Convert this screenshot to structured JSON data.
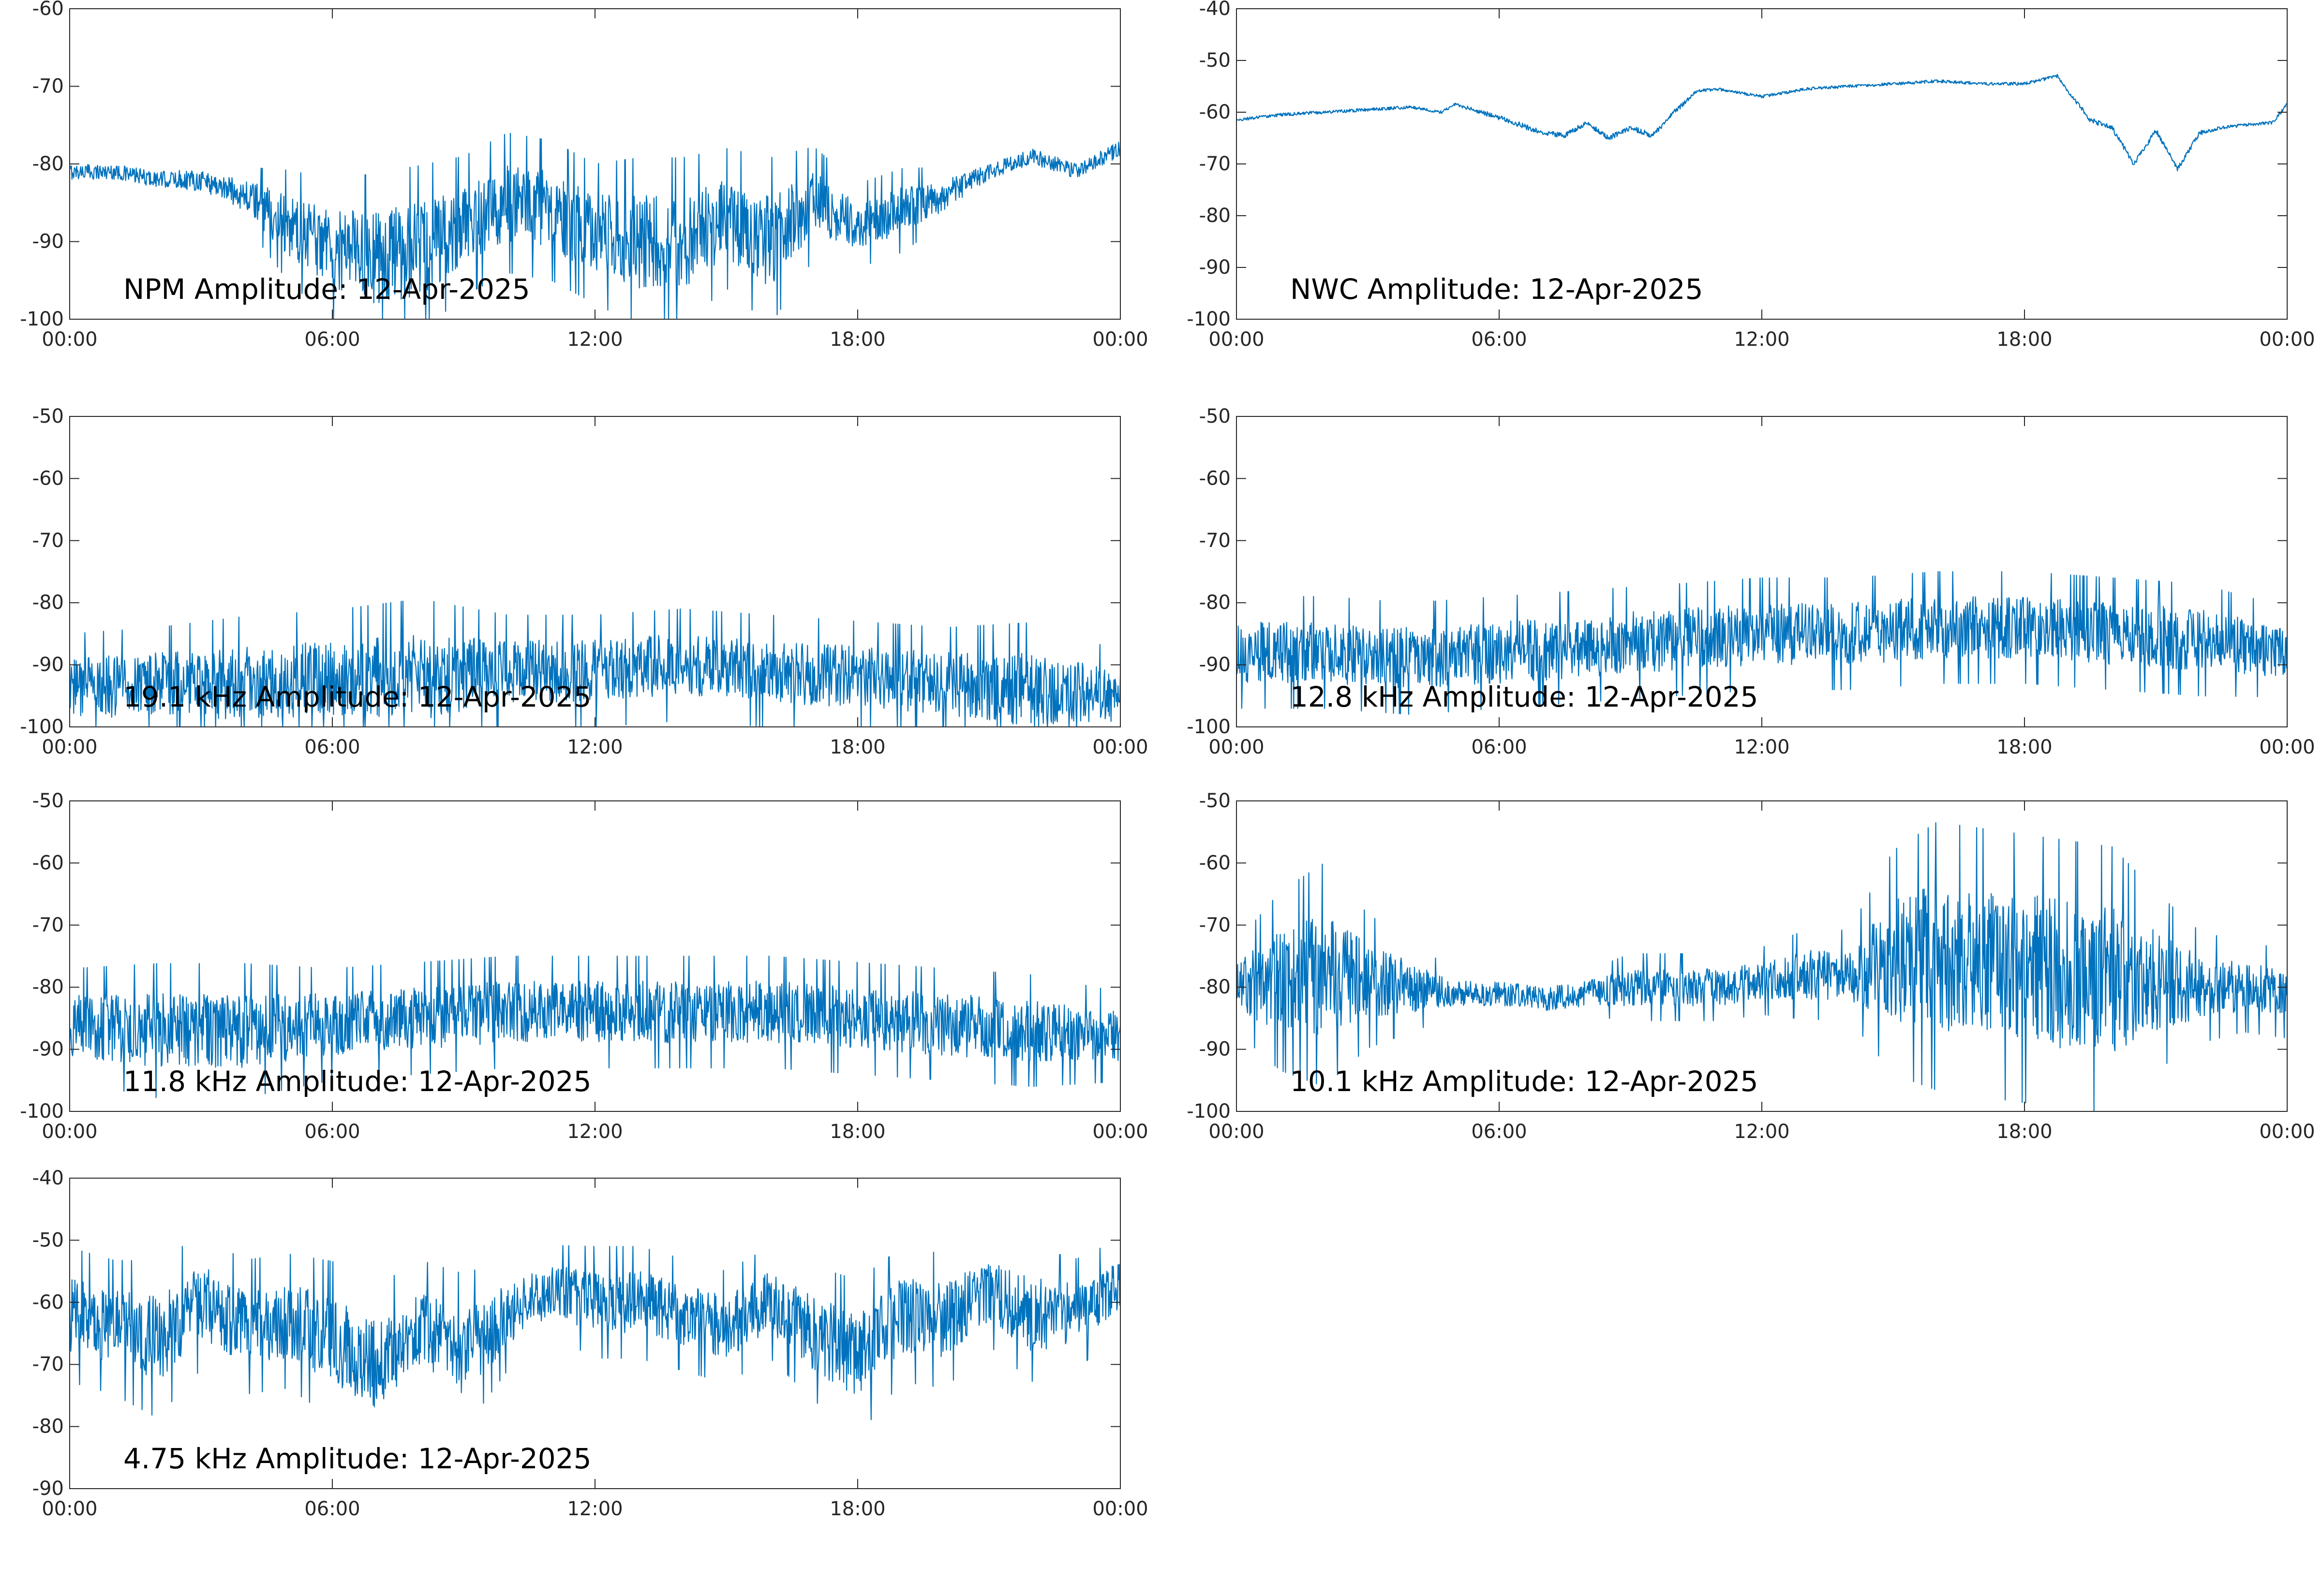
{
  "colors": {
    "line": "#0072BD",
    "axis": "#262626",
    "text": "#000000",
    "background": "#ffffff"
  },
  "chart_data": [
    {
      "type": "line",
      "title": "NPM Amplitude: 12-Apr-2025",
      "xlabel": "",
      "ylabel": "",
      "x_ticks": [
        "00:00",
        "06:00",
        "12:00",
        "18:00",
        "00:00"
      ],
      "y_ticks": [
        "-100",
        "-90",
        "-80",
        "-70",
        "-60"
      ],
      "xlim": [
        "00:00",
        "24:00"
      ],
      "ylim": [
        -100,
        -60
      ],
      "grid": false,
      "series": [
        {
          "x": [
            "00:00",
            "01:00",
            "02:00",
            "03:00",
            "04:00",
            "05:00",
            "06:00",
            "07:00",
            "08:00",
            "09:00",
            "10:00",
            "11:00",
            "12:00",
            "13:00",
            "14:00",
            "15:00",
            "16:00",
            "17:00",
            "18:00",
            "19:00",
            "20:00",
            "21:00",
            "22:00",
            "23:00",
            "24:00"
          ],
          "y": [
            -81,
            -81,
            -82,
            -82,
            -84,
            -88,
            -91,
            -92,
            -91,
            -88,
            -85,
            -86,
            -89,
            -90,
            -90,
            -87,
            -90,
            -85,
            -88,
            -86,
            -84,
            -81,
            -79,
            -81,
            -78
          ],
          "band": [
            1,
            1,
            1,
            1.5,
            2,
            4,
            5,
            6,
            6,
            5,
            5,
            5,
            5,
            6,
            6,
            5,
            6,
            4,
            3,
            3,
            2,
            1,
            1,
            1,
            1
          ]
        }
      ]
    },
    {
      "type": "line",
      "title": "NWC Amplitude: 12-Apr-2025",
      "xlabel": "",
      "ylabel": "",
      "x_ticks": [
        "00:00",
        "06:00",
        "12:00",
        "18:00",
        "00:00"
      ],
      "y_ticks": [
        "-100",
        "-90",
        "-80",
        "-70",
        "-60",
        "-50",
        "-40"
      ],
      "xlim": [
        "00:00",
        "24:00"
      ],
      "ylim": [
        -100,
        -40
      ],
      "grid": false,
      "series": [
        {
          "x": [
            "00:00",
            "01:00",
            "02:00",
            "03:00",
            "04:00",
            "04:40",
            "05:00",
            "06:00",
            "07:00",
            "07:30",
            "08:00",
            "08:30",
            "09:00",
            "09:30",
            "10:00",
            "10:30",
            "11:00",
            "12:00",
            "13:00",
            "14:00",
            "15:00",
            "16:00",
            "17:00",
            "18:00",
            "18:45",
            "19:00",
            "19:30",
            "20:00",
            "20:30",
            "21:00",
            "21:30",
            "22:00",
            "22:30",
            "23:00",
            "23:40",
            "24:00"
          ],
          "y": [
            -61.5,
            -60.5,
            -60,
            -59.5,
            -59,
            -60,
            -58.5,
            -61,
            -64,
            -64.5,
            -62,
            -65,
            -63,
            -64.5,
            -60,
            -56,
            -55.5,
            -57,
            -55.5,
            -55,
            -54.5,
            -54,
            -54.5,
            -54.5,
            -53,
            -56,
            -61.5,
            -63,
            -70,
            -63.5,
            -71,
            -64,
            -63,
            -62.5,
            -62,
            -58.5
          ],
          "band": [
            0.3,
            0.3,
            0.3,
            0.3,
            0.3,
            0.3,
            0.3,
            0.5,
            0.5,
            0.5,
            0.5,
            0.5,
            0.5,
            0.5,
            0.5,
            0.3,
            0.3,
            0.3,
            0.3,
            0.3,
            0.3,
            0.3,
            0.3,
            0.3,
            0.3,
            0.3,
            0.5,
            0.5,
            0.5,
            0.5,
            0.5,
            0.5,
            0.3,
            0.3,
            0.3,
            0.3
          ]
        }
      ]
    },
    {
      "type": "line",
      "title": "19.1 kHz Amplitude: 12-Apr-2025",
      "xlabel": "",
      "ylabel": "",
      "x_ticks": [
        "00:00",
        "06:00",
        "12:00",
        "18:00",
        "00:00"
      ],
      "y_ticks": [
        "-100",
        "-90",
        "-80",
        "-70",
        "-60",
        "-50"
      ],
      "xlim": [
        "00:00",
        "24:00"
      ],
      "ylim": [
        -100,
        -50
      ],
      "grid": false,
      "series": [
        {
          "x": [
            "00:00",
            "02:00",
            "04:00",
            "06:00",
            "08:00",
            "10:00",
            "12:00",
            "14:00",
            "16:00",
            "18:00",
            "20:00",
            "22:00",
            "24:00"
          ],
          "y": [
            -94,
            -93,
            -93,
            -92,
            -92,
            -91,
            -91,
            -90,
            -91,
            -92,
            -93,
            -94,
            -95
          ],
          "band": [
            5,
            5,
            6,
            6,
            7,
            5,
            5,
            5,
            5,
            5,
            5,
            6,
            4
          ]
        }
      ]
    },
    {
      "type": "line",
      "title": "12.8 kHz Amplitude: 12-Apr-2025",
      "xlabel": "",
      "ylabel": "",
      "x_ticks": [
        "00:00",
        "06:00",
        "12:00",
        "18:00",
        "00:00"
      ],
      "y_ticks": [
        "-100",
        "-90",
        "-80",
        "-70",
        "-60",
        "-50"
      ],
      "xlim": [
        "00:00",
        "24:00"
      ],
      "ylim": [
        -100,
        -50
      ],
      "grid": false,
      "series": [
        {
          "x": [
            "00:00",
            "02:00",
            "04:00",
            "06:00",
            "08:00",
            "10:00",
            "12:00",
            "14:00",
            "16:00",
            "18:00",
            "20:00",
            "22:00",
            "24:00"
          ],
          "y": [
            -88,
            -88,
            -89,
            -88,
            -87,
            -86,
            -85,
            -85,
            -84,
            -84,
            -85,
            -86,
            -88
          ],
          "band": [
            5,
            5,
            5,
            5,
            5,
            5,
            5,
            5,
            5,
            5,
            5,
            5,
            4
          ]
        }
      ]
    },
    {
      "type": "line",
      "title": "11.8 kHz Amplitude: 12-Apr-2025",
      "xlabel": "",
      "ylabel": "",
      "x_ticks": [
        "00:00",
        "06:00",
        "12:00",
        "18:00",
        "00:00"
      ],
      "y_ticks": [
        "-100",
        "-90",
        "-80",
        "-70",
        "-60",
        "-50"
      ],
      "xlim": [
        "00:00",
        "24:00"
      ],
      "ylim": [
        -100,
        -50
      ],
      "grid": false,
      "series": [
        {
          "x": [
            "00:00",
            "02:00",
            "04:00",
            "06:00",
            "08:00",
            "10:00",
            "12:00",
            "14:00",
            "16:00",
            "18:00",
            "20:00",
            "22:00",
            "24:00"
          ],
          "y": [
            -86,
            -87,
            -87,
            -86,
            -85,
            -84,
            -84,
            -84,
            -84,
            -85,
            -86,
            -87,
            -88
          ],
          "band": [
            5,
            6,
            6,
            5,
            5,
            5,
            5,
            5,
            5,
            5,
            5,
            5,
            4
          ]
        }
      ]
    },
    {
      "type": "line",
      "title": "10.1 kHz Amplitude: 12-Apr-2025",
      "xlabel": "",
      "ylabel": "",
      "x_ticks": [
        "00:00",
        "06:00",
        "12:00",
        "18:00",
        "00:00"
      ],
      "y_ticks": [
        "-100",
        "-90",
        "-80",
        "-70",
        "-60",
        "-50"
      ],
      "xlim": [
        "00:00",
        "24:00"
      ],
      "ylim": [
        -100,
        -50
      ],
      "grid": false,
      "series": [
        {
          "x": [
            "00:00",
            "01:00",
            "02:00",
            "03:00",
            "04:00",
            "05:00",
            "06:00",
            "07:00",
            "08:00",
            "09:00",
            "10:00",
            "11:00",
            "12:00",
            "13:00",
            "14:00",
            "15:00",
            "16:00",
            "17:00",
            "18:00",
            "19:00",
            "20:00",
            "21:00",
            "22:00",
            "23:00",
            "24:00"
          ],
          "y": [
            -80,
            -79,
            -78,
            -79,
            -80,
            -81,
            -81,
            -82,
            -81,
            -80,
            -80,
            -80,
            -79,
            -78,
            -78,
            -76,
            -75,
            -76,
            -77,
            -78,
            -79,
            -79,
            -80,
            -80,
            -81
          ],
          "band": [
            4,
            8,
            10,
            6,
            4,
            2,
            2,
            2,
            2,
            3,
            3,
            3,
            3,
            4,
            4,
            10,
            12,
            12,
            12,
            12,
            12,
            8,
            5,
            4,
            4
          ]
        }
      ]
    },
    {
      "type": "line",
      "title": "4.75 kHz Amplitude: 12-Apr-2025",
      "xlabel": "",
      "ylabel": "",
      "x_ticks": [
        "00:00",
        "06:00",
        "12:00",
        "18:00",
        "00:00"
      ],
      "y_ticks": [
        "-90",
        "-80",
        "-70",
        "-60",
        "-50",
        "-40"
      ],
      "xlim": [
        "00:00",
        "24:00"
      ],
      "ylim": [
        -90,
        -40
      ],
      "grid": false,
      "series": [
        {
          "x": [
            "00:00",
            "01:00",
            "02:00",
            "03:00",
            "04:00",
            "05:00",
            "06:00",
            "07:00",
            "08:00",
            "09:00",
            "10:00",
            "11:00",
            "12:00",
            "13:00",
            "14:00",
            "15:00",
            "16:00",
            "17:00",
            "18:00",
            "19:00",
            "20:00",
            "21:00",
            "22:00",
            "23:00",
            "24:00"
          ],
          "y": [
            -62,
            -64,
            -66,
            -60,
            -64,
            -63,
            -66,
            -70,
            -64,
            -68,
            -62,
            -58,
            -60,
            -60,
            -62,
            -64,
            -60,
            -65,
            -69,
            -62,
            -63,
            -58,
            -62,
            -62,
            -57
          ],
          "band": [
            6,
            6,
            7,
            6,
            6,
            6,
            7,
            7,
            6,
            7,
            5,
            4,
            5,
            5,
            5,
            5,
            5,
            6,
            7,
            6,
            6,
            5,
            6,
            5,
            4
          ]
        }
      ]
    }
  ]
}
